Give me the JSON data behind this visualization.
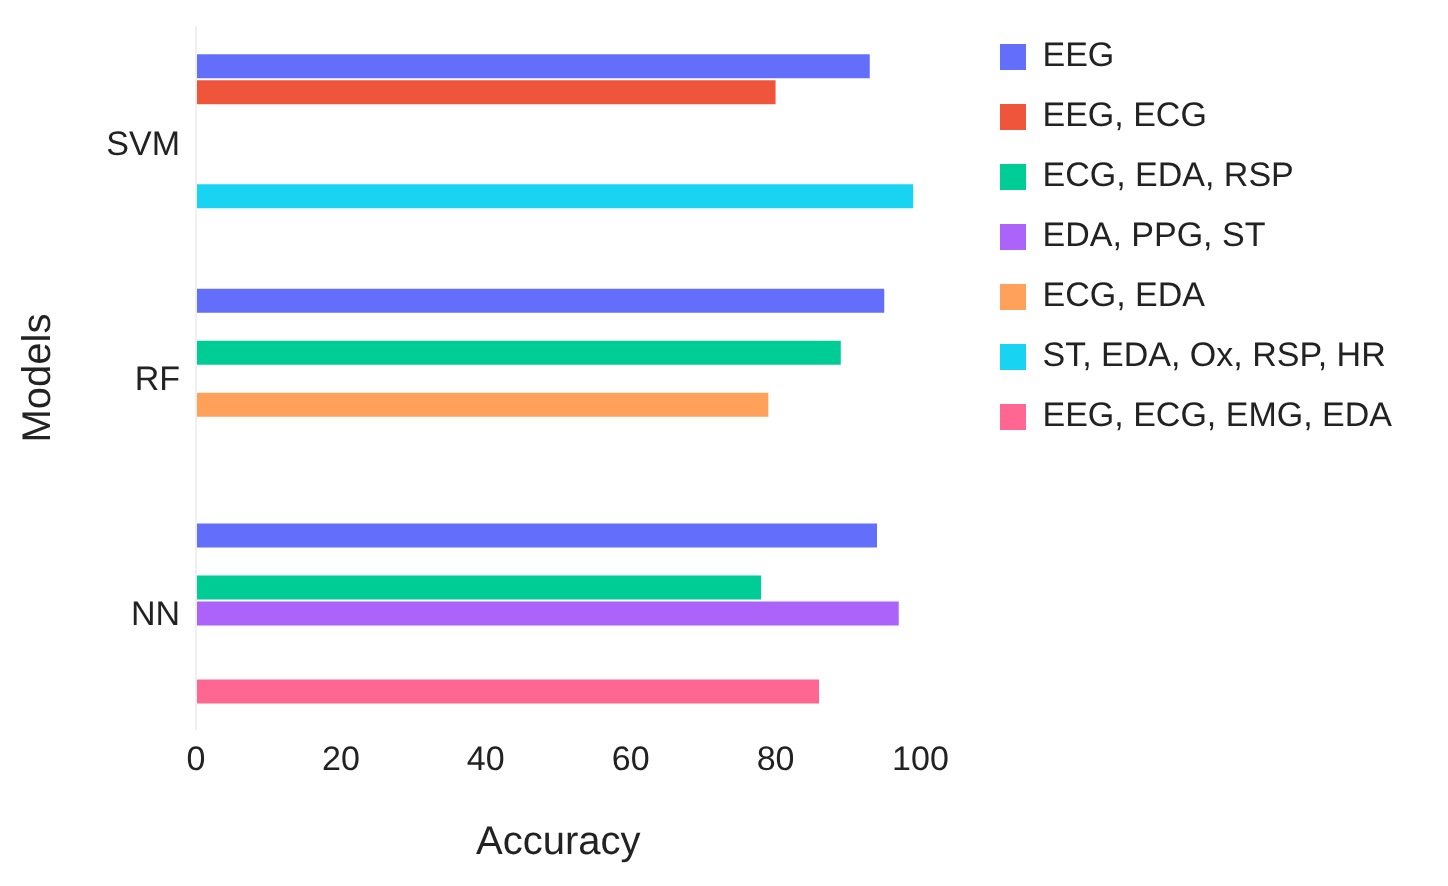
{
  "chart_data": {
    "type": "bar",
    "orientation": "horizontal",
    "xlabel": "Accuracy",
    "ylabel": "Models",
    "categories": [
      "SVM",
      "RF",
      "NN"
    ],
    "series": [
      {
        "name": "EEG",
        "color": "#636efa",
        "values": [
          93,
          95,
          94
        ]
      },
      {
        "name": "EEG, ECG",
        "color": "#ef553b",
        "values": [
          80,
          null,
          null
        ]
      },
      {
        "name": "ECG, EDA, RSP",
        "color": "#00cc96",
        "values": [
          null,
          89,
          78
        ]
      },
      {
        "name": "EDA, PPG, ST",
        "color": "#ab63fa",
        "values": [
          null,
          null,
          97
        ]
      },
      {
        "name": "ECG, EDA",
        "color": "#ffa15a",
        "values": [
          null,
          79,
          null
        ]
      },
      {
        "name": "ST, EDA, Ox, RSP, HR",
        "color": "#19d3f3",
        "values": [
          99,
          null,
          null
        ]
      },
      {
        "name": "EEG, ECG, EMG, EDA",
        "color": "#ff6692",
        "values": [
          null,
          null,
          86
        ]
      }
    ],
    "xlim": [
      0,
      100
    ],
    "xticks": [
      0,
      20,
      40,
      60,
      80,
      100
    ],
    "grid": false,
    "legend": "top right"
  }
}
